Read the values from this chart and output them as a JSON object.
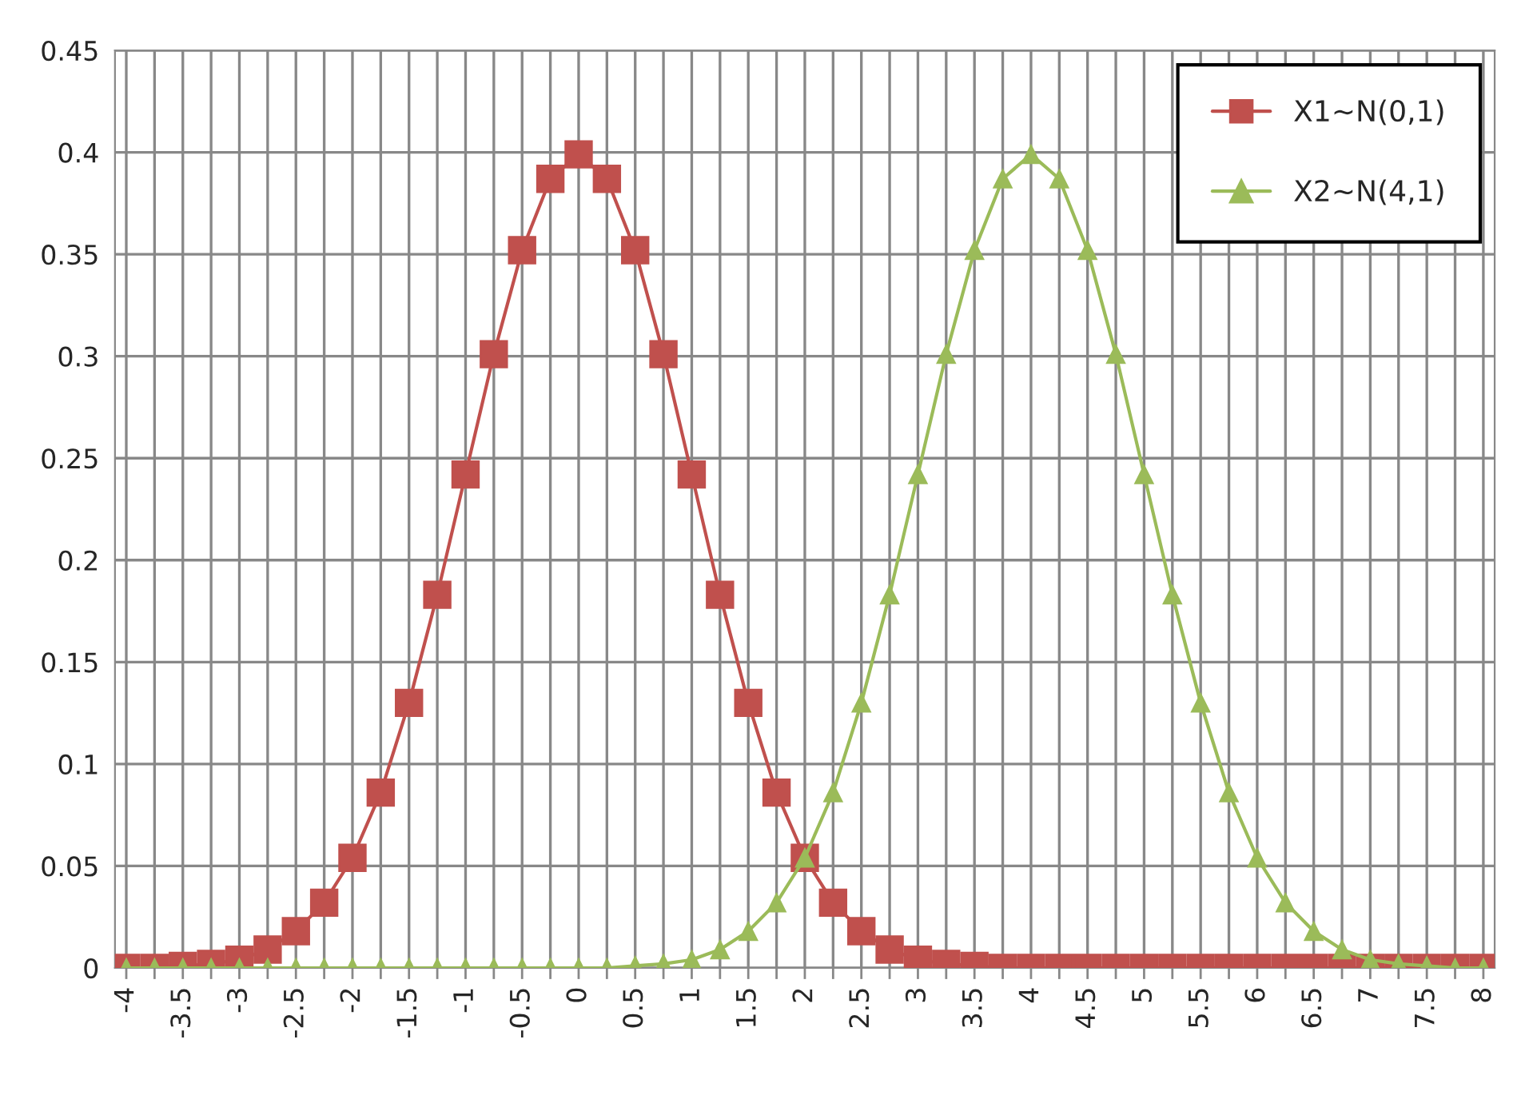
{
  "chart_data": {
    "type": "line",
    "categories": [
      "-4",
      null,
      "-3.5",
      null,
      "-3",
      null,
      "-2.5",
      null,
      "-2",
      null,
      "-1.5",
      null,
      "-1",
      null,
      "-0.5",
      null,
      "0",
      null,
      "0.5",
      null,
      "1",
      null,
      "1.5",
      null,
      "2",
      null,
      "2.5",
      null,
      "3",
      null,
      "3.5",
      null,
      "4",
      null,
      "4.5",
      null,
      "5",
      null,
      "5.5",
      null,
      "6",
      null,
      "6.5",
      null,
      "7",
      null,
      "7.5",
      null,
      "8"
    ],
    "series": [
      {
        "name": "X1~N(0,1)",
        "color": "#c0504d",
        "marker": "square",
        "values": [
          0,
          0,
          0.001,
          0.002,
          0.004,
          0.009,
          0.018,
          0.032,
          0.054,
          0.086,
          0.13,
          0.183,
          0.242,
          0.301,
          0.352,
          0.387,
          0.399,
          0.387,
          0.352,
          0.301,
          0.242,
          0.183,
          0.13,
          0.086,
          0.054,
          0.032,
          0.018,
          0.009,
          0.004,
          0.002,
          0.001,
          0,
          0,
          0,
          0,
          0,
          0,
          0,
          0,
          0,
          0,
          0,
          0,
          0,
          0,
          0,
          0,
          0,
          0
        ]
      },
      {
        "name": "X2~N(4,1)",
        "color": "#9bbb59",
        "marker": "triangle",
        "values": [
          0,
          0,
          0,
          0,
          0,
          0,
          0,
          0,
          0,
          0,
          0,
          0,
          0,
          0,
          0,
          0,
          0,
          0,
          0.001,
          0.002,
          0.004,
          0.009,
          0.018,
          0.032,
          0.054,
          0.086,
          0.13,
          0.183,
          0.242,
          0.301,
          0.352,
          0.387,
          0.399,
          0.387,
          0.352,
          0.301,
          0.242,
          0.183,
          0.13,
          0.086,
          0.054,
          0.032,
          0.018,
          0.009,
          0.004,
          0.002,
          0.001,
          0,
          0
        ]
      }
    ],
    "ylim": [
      0,
      0.45
    ],
    "yticks": [
      0,
      0.05,
      0.1,
      0.15,
      0.2,
      0.25,
      0.3,
      0.35,
      0.4,
      0.45
    ],
    "grid": true,
    "legend": "top right",
    "line_style": "solid"
  }
}
